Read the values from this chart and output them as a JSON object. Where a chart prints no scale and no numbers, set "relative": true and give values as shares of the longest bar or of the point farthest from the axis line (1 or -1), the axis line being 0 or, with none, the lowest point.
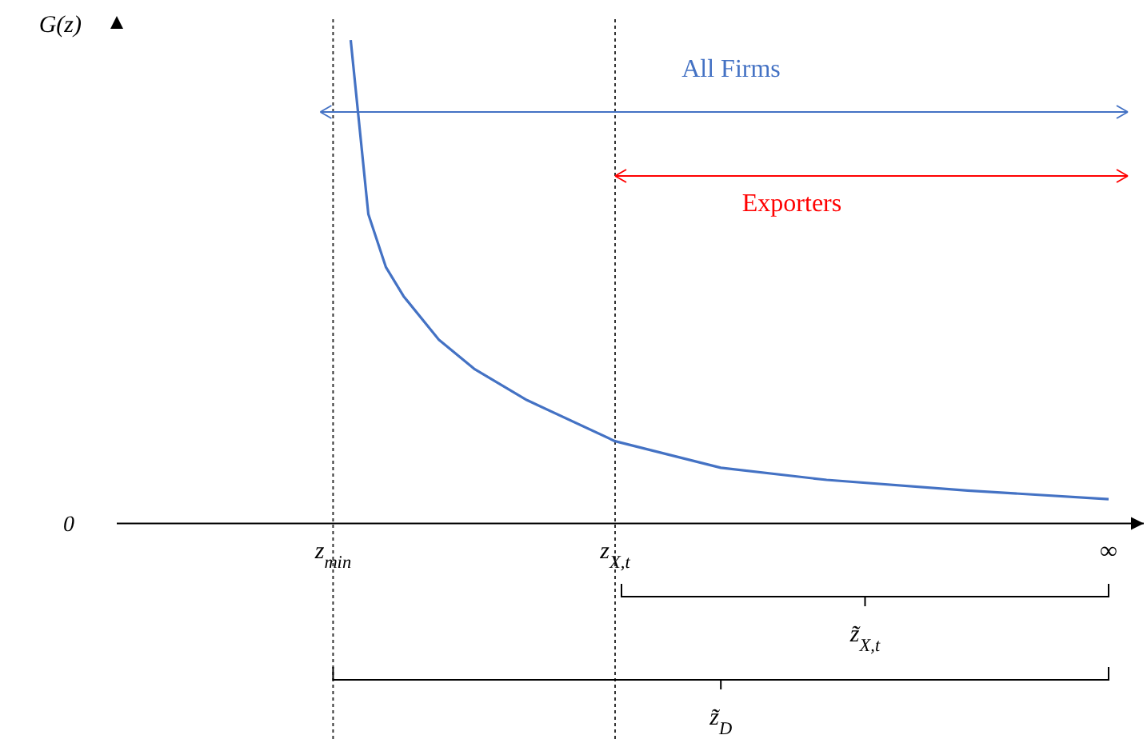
{
  "chart_data": {
    "type": "line",
    "relative": true,
    "ylabel": "G(z)",
    "categories": [
      null,
      null,
      null,
      null,
      null,
      null,
      null,
      null,
      null,
      null,
      null,
      null,
      "z$_{min}$",
      null,
      null,
      null,
      null,
      null,
      null,
      null,
      null,
      null,
      null,
      null,
      null,
      null,
      null,
      null,
      "z$_{X,t}$",
      null,
      null,
      null,
      null,
      null,
      null,
      null,
      null,
      null,
      null,
      null,
      null,
      null,
      null,
      null,
      null,
      null,
      null,
      null,
      null,
      null,
      null,
      null,
      null,
      null,
      null,
      null,
      "∞"
    ],
    "series": [
      {
        "color": "#4472c4",
        "values": [
          null,
          null,
          null,
          null,
          null,
          null,
          null,
          null,
          null,
          null,
          null,
          null,
          null,
          1.0,
          0.64,
          0.53,
          0.47,
          null,
          0.38,
          null,
          0.32,
          null,
          null,
          0.255,
          null,
          null,
          null,
          null,
          0.17,
          null,
          null,
          null,
          null,
          null,
          0.115,
          null,
          null,
          null,
          null,
          null,
          0.09,
          null,
          null,
          null,
          null,
          null,
          null,
          null,
          0.068,
          null,
          null,
          null,
          null,
          null,
          null,
          null,
          0.05
        ]
      }
    ],
    "ref_lines": [
      {
        "axis": "x",
        "value": "z$_{min}$",
        "label": null,
        "color": "#333333",
        "line_style": "dotted"
      },
      {
        "axis": "x",
        "value": "z$_{X,t}$",
        "label": null,
        "color": "#333333",
        "line_style": "dotted"
      }
    ],
    "annotations": [
      "All Firms",
      "Exporters",
      "z̃$_{X,t}$",
      "z̃$_{D}$",
      "0"
    ],
    "grid": false,
    "legend": false,
    "marker": "none",
    "line_style": "solid"
  }
}
